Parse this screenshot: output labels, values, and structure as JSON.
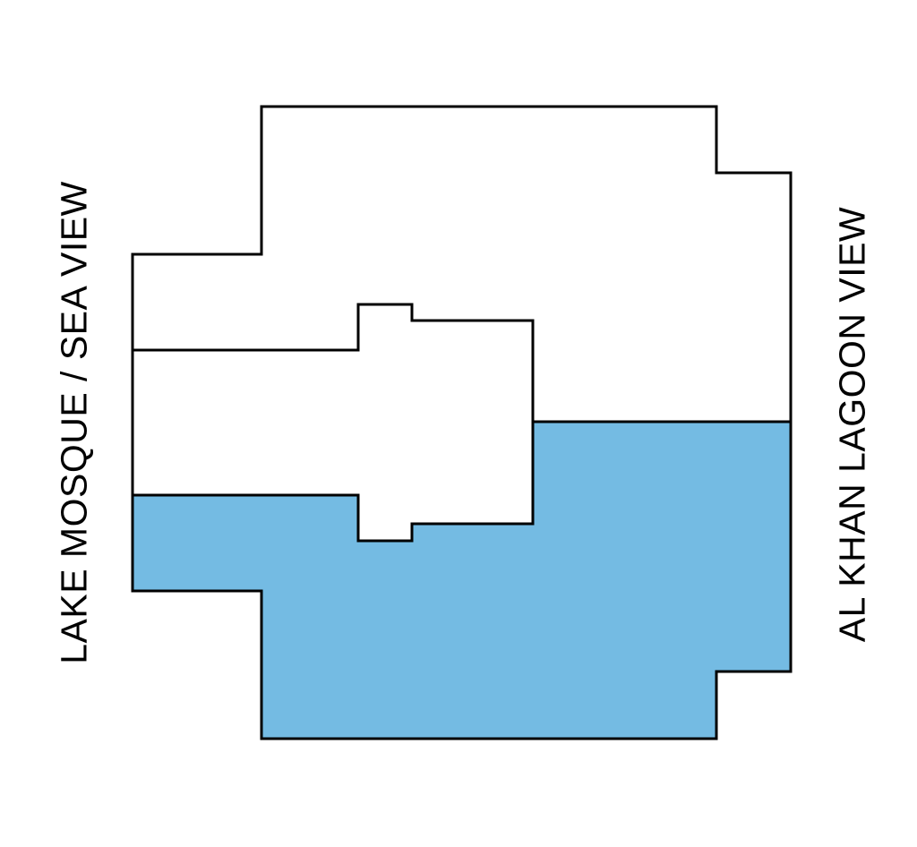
{
  "labels": {
    "left": "LAKE MOSQUE / SEA VIEW",
    "right": "AL KHAN LAGOON VIEW"
  },
  "colors": {
    "highlight": "#74bbe3",
    "outline": "#000000",
    "background": "#ffffff"
  }
}
